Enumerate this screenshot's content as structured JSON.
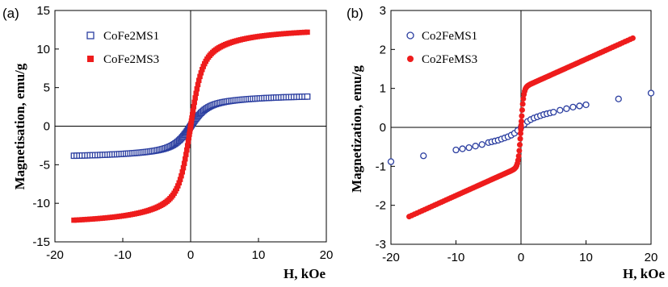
{
  "chart_data": [
    {
      "type": "scatter",
      "panel_label": "(a)",
      "title": "",
      "xlabel": "H, kOe",
      "ylabel": "Magnetisation, emu/g",
      "xlim": [
        -20,
        20
      ],
      "ylim": [
        -15,
        15
      ],
      "xticks": [
        -20,
        -10,
        0,
        10,
        20
      ],
      "yticks": [
        -15,
        -10,
        -5,
        0,
        5,
        10,
        15
      ],
      "grid": false,
      "legend_position": "top-left",
      "series": [
        {
          "name": "CoFe2MS1",
          "marker": "open-square",
          "color": "#2b3ea0",
          "model": {
            "ms": 4.8,
            "a": 2.2,
            "xmax": 17.2
          },
          "x": [
            -17,
            -12,
            -8,
            -5,
            -3,
            -1,
            0,
            1,
            3,
            5,
            8,
            12,
            17
          ],
          "y": [
            -4.2,
            -3.8,
            -3.3,
            -2.8,
            -2.1,
            -0.9,
            0,
            0.9,
            2.1,
            2.8,
            3.3,
            3.8,
            4.2
          ]
        },
        {
          "name": "CoFe2MS3",
          "marker": "filled-square",
          "color": "#ee1c1c",
          "model": {
            "ms": 14.0,
            "a": 1.5,
            "xmax": 17.2
          },
          "x": [
            -17,
            -12,
            -8,
            -5,
            -3,
            -1,
            0,
            1,
            3,
            5,
            8,
            12,
            17
          ],
          "y": [
            -13.0,
            -12.0,
            -10.8,
            -9.4,
            -7.8,
            -4.4,
            0,
            4.4,
            7.8,
            9.4,
            10.8,
            12.0,
            13.0
          ]
        }
      ]
    },
    {
      "type": "scatter",
      "panel_label": "(b)",
      "title": "",
      "xlabel": "H, kOe",
      "ylabel": "Magnetization, emu/g",
      "xlim": [
        -20,
        20
      ],
      "ylim": [
        -3,
        3
      ],
      "xticks": [
        -20,
        -10,
        0,
        10,
        20
      ],
      "yticks": [
        -3,
        -2,
        -1,
        0,
        1,
        2,
        3
      ],
      "grid": false,
      "legend_position": "top-left",
      "series": [
        {
          "name": "Co2FeMS1",
          "marker": "open-circle",
          "color": "#2b3ea0",
          "x": [
            -20,
            -15,
            -10,
            -9,
            -8,
            -7,
            -6,
            -5,
            -4.5,
            -4,
            -3.5,
            -3,
            -2.5,
            -2,
            -1.5,
            -1,
            -0.5,
            0,
            0.5,
            1,
            1.5,
            2,
            2.5,
            3,
            3.5,
            4,
            4.5,
            5,
            6,
            7,
            8,
            9,
            10,
            15,
            20
          ],
          "y": [
            -0.88,
            -0.73,
            -0.58,
            -0.55,
            -0.52,
            -0.48,
            -0.44,
            -0.39,
            -0.37,
            -0.35,
            -0.33,
            -0.3,
            -0.27,
            -0.24,
            -0.2,
            -0.15,
            -0.08,
            0,
            0.08,
            0.15,
            0.2,
            0.24,
            0.27,
            0.3,
            0.33,
            0.35,
            0.37,
            0.39,
            0.44,
            0.48,
            0.52,
            0.55,
            0.58,
            0.73,
            0.88
          ]
        },
        {
          "name": "Co2FeMS3",
          "marker": "filled-circle",
          "color": "#ee1c1c",
          "model": {
            "ms": 1.0,
            "a": 0.4,
            "chi": 0.075,
            "xmax": 17.2
          },
          "x": [
            -17,
            -12,
            -8,
            -5,
            -3,
            -1,
            0,
            1,
            3,
            5,
            8,
            12,
            17
          ],
          "y": [
            -2.3,
            -1.9,
            -1.6,
            -1.3,
            -1.1,
            -0.8,
            0,
            0.8,
            1.1,
            1.3,
            1.6,
            1.9,
            2.3
          ]
        }
      ]
    }
  ]
}
